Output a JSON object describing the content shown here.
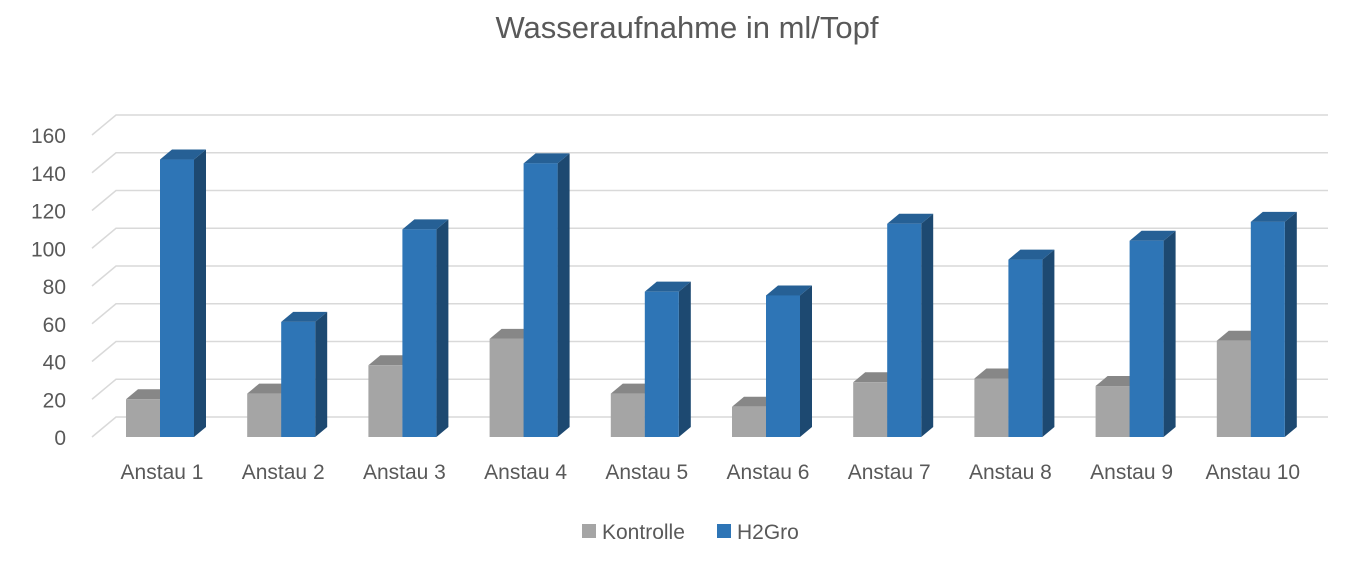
{
  "chart_data": {
    "type": "bar",
    "title": "Wasseraufnahme in ml/Topf",
    "xlabel": "",
    "ylabel": "",
    "ylim": [
      0,
      160
    ],
    "yticks": [
      0,
      20,
      40,
      60,
      80,
      100,
      120,
      140,
      160
    ],
    "grid": true,
    "legend_position": "bottom",
    "categories": [
      "Anstau 1",
      "Anstau 2",
      "Anstau 3",
      "Anstau 4",
      "Anstau 5",
      "Anstau 6",
      "Anstau 7",
      "Anstau 8",
      "Anstau 9",
      "Anstau 10"
    ],
    "series": [
      {
        "name": "Kontrolle",
        "color": "#a5a5a5",
        "values": [
          20,
          23,
          38,
          52,
          23,
          16,
          29,
          31,
          27,
          51
        ]
      },
      {
        "name": "H2Gro",
        "color": "#2e75b6",
        "values": [
          147,
          61,
          110,
          145,
          77,
          75,
          113,
          94,
          104,
          114
        ]
      }
    ]
  }
}
